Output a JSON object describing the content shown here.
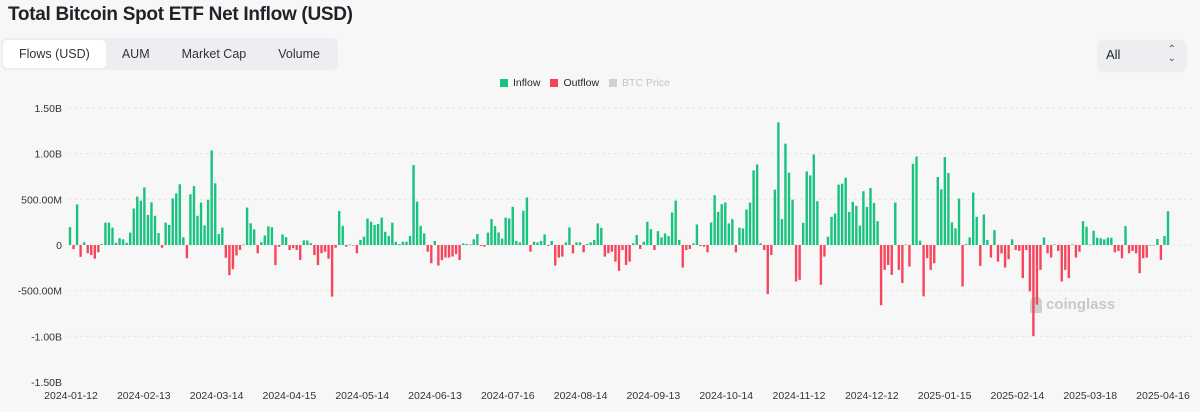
{
  "header": {
    "title": "Total Bitcoin Spot ETF Net Inflow (USD)"
  },
  "tabs": [
    {
      "label": "Flows (USD)",
      "active": true
    },
    {
      "label": "AUM",
      "active": false
    },
    {
      "label": "Market Cap",
      "active": false
    },
    {
      "label": "Volume",
      "active": false
    }
  ],
  "range_select": {
    "value": "All",
    "icon": "chevron-up-down-icon"
  },
  "watermark": "coinglass",
  "colors": {
    "inflow": "#18c27f",
    "outflow": "#f6465d",
    "btc_price": "#c8c8c8"
  },
  "chart_data": {
    "type": "bar",
    "title": "Total Bitcoin Spot ETF Net Inflow (USD)",
    "unit": "USD (millions)",
    "legend": {
      "placement": "top-center",
      "entries": [
        {
          "name": "Inflow",
          "color": "#18c27f",
          "enabled": true
        },
        {
          "name": "Outflow",
          "color": "#f6465d",
          "enabled": true
        },
        {
          "name": "BTC Price",
          "color": "#c8c8c8",
          "enabled": false
        }
      ]
    },
    "x_ticks": [
      "2024-01-12",
      "2024-02-13",
      "2024-03-14",
      "2024-04-15",
      "2024-05-14",
      "2024-06-13",
      "2024-07-16",
      "2024-08-14",
      "2024-09-13",
      "2024-10-14",
      "2024-11-12",
      "2024-12-12",
      "2025-01-15",
      "2025-02-14",
      "2025-03-18",
      "2025-04-16"
    ],
    "y_ticks": [
      {
        "value": 1500,
        "label": "1.50B"
      },
      {
        "value": 1000,
        "label": "1.00B"
      },
      {
        "value": 500,
        "label": "500.00M"
      },
      {
        "value": 0,
        "label": "0"
      },
      {
        "value": -500,
        "label": "-500.00M"
      },
      {
        "value": -1000,
        "label": "-1.00B"
      },
      {
        "value": -1500,
        "label": "-1.50B"
      }
    ],
    "ylim": [
      -1500,
      1500
    ],
    "grid": true,
    "values": [
      195,
      -45,
      445,
      -130,
      30,
      -90,
      -110,
      -150,
      -80,
      10,
      245,
      245,
      190,
      25,
      75,
      62,
      25,
      135,
      400,
      530,
      485,
      630,
      330,
      467,
      320,
      130,
      -30,
      245,
      220,
      510,
      565,
      665,
      85,
      -145,
      555,
      645,
      320,
      465,
      215,
      495,
      1035,
      675,
      120,
      190,
      -140,
      -330,
      -265,
      -115,
      -55,
      5,
      410,
      237,
      170,
      -90,
      30,
      105,
      205,
      195,
      -220,
      -20,
      115,
      85,
      -55,
      -35,
      -55,
      -165,
      50,
      50,
      20,
      -110,
      -220,
      -90,
      -75,
      -150,
      -565,
      -30,
      372,
      210,
      -18,
      5,
      -5,
      -90,
      55,
      90,
      290,
      255,
      220,
      230,
      300,
      145,
      100,
      245,
      35,
      10,
      35,
      35,
      100,
      875,
      475,
      210,
      127,
      -73,
      -200,
      44,
      -225,
      -165,
      -138,
      -138,
      -127,
      -100,
      -165,
      18,
      10,
      5,
      62,
      120,
      -10,
      -18,
      135,
      283,
      207,
      138,
      70,
      300,
      290,
      418,
      44,
      29,
      375,
      520,
      -73,
      36,
      29,
      44,
      116,
      -10,
      44,
      -225,
      -138,
      -127,
      29,
      193,
      -91,
      29,
      29,
      -80,
      11,
      29,
      55,
      236,
      189,
      -127,
      -91,
      -73,
      -182,
      -283,
      -55,
      -218,
      -182,
      18,
      109,
      -44,
      36,
      254,
      174,
      -55,
      152,
      83,
      127,
      98,
      356,
      486,
      55,
      -247,
      -55,
      -44,
      18,
      225,
      -11,
      -18,
      -80,
      247,
      545,
      363,
      447,
      465,
      236,
      283,
      -80,
      189,
      182,
      388,
      465,
      817,
      882,
      18,
      -55,
      -537,
      -109,
      606,
      1343,
      283,
      1110,
      791,
      497,
      -400,
      -381,
      243,
      806,
      762,
      991,
      479,
      -436,
      -127,
      91,
      309,
      345,
      661,
      672,
      737,
      363,
      472,
      428,
      211,
      588,
      417,
      624,
      461,
      261,
      -660,
      -272,
      -218,
      -327,
      465,
      -272,
      -417,
      5,
      -236,
      889,
      969,
      47,
      -563,
      -145,
      -272,
      -200,
      744,
      610,
      962,
      788,
      247,
      182,
      508,
      -454,
      10,
      83,
      574,
      309,
      -229,
      334,
      55,
      -138,
      163,
      -182,
      -91,
      -247,
      -156,
      62,
      -55,
      -65,
      -363,
      -55,
      -508,
      -998,
      -653,
      -272,
      83,
      -91,
      -138,
      7,
      -65,
      -400,
      -272,
      -363,
      7,
      -138,
      -73,
      261,
      200,
      5,
      156,
      80,
      73,
      62,
      80,
      80,
      -80,
      -65,
      -145,
      207,
      -91,
      -65,
      -91,
      -309,
      -145,
      -138,
      0,
      0,
      65,
      -163,
      98,
      370
    ]
  }
}
